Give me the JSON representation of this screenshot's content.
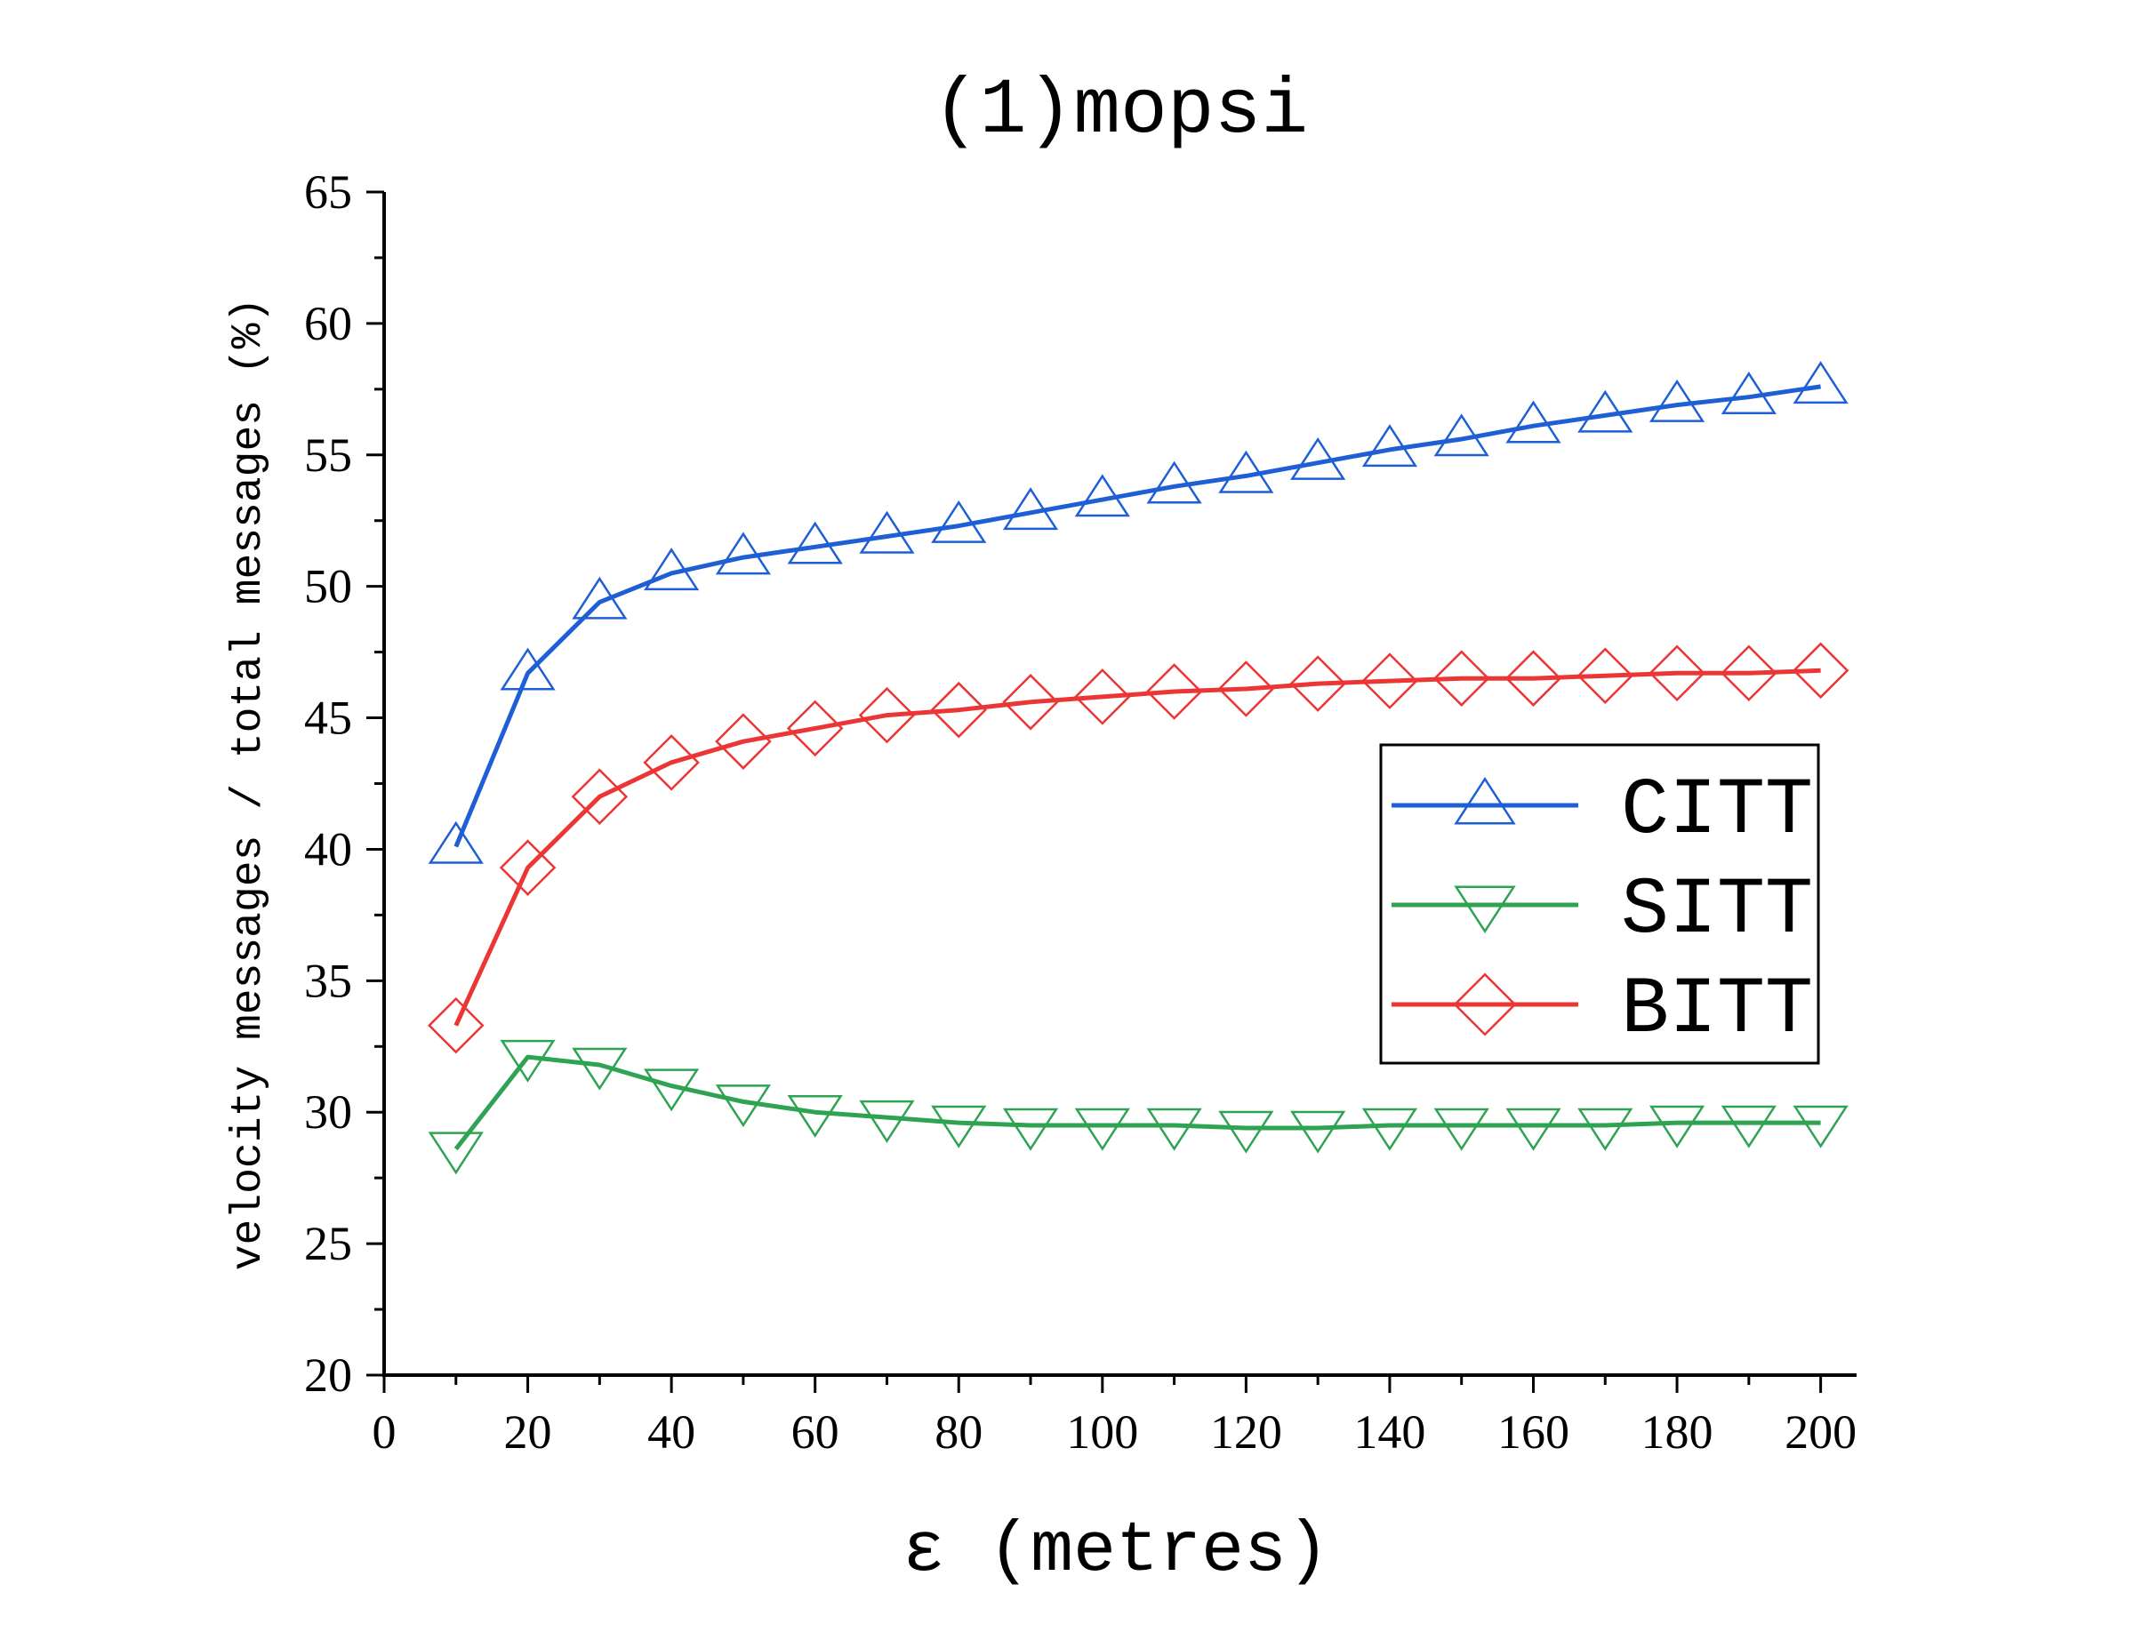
{
  "chart_data": {
    "type": "line",
    "title": "(1)mopsi",
    "xlabel": "ε  (metres)",
    "ylabel": "velocity messages / total messages (%)",
    "xlim": [
      0,
      205
    ],
    "ylim": [
      20,
      65
    ],
    "x_ticks": [
      0,
      20,
      40,
      60,
      80,
      100,
      120,
      140,
      160,
      180,
      200
    ],
    "y_ticks": [
      20,
      25,
      30,
      35,
      40,
      45,
      50,
      55,
      60,
      65
    ],
    "grid": false,
    "legend_position": "right",
    "x": [
      10,
      20,
      30,
      40,
      50,
      60,
      70,
      80,
      90,
      100,
      110,
      120,
      130,
      140,
      150,
      160,
      170,
      180,
      190,
      200
    ],
    "series": [
      {
        "name": "CITT",
        "color": "#1f5fd6",
        "marker": "triangle-up",
        "values": [
          40.1,
          46.7,
          49.4,
          50.5,
          51.1,
          51.5,
          51.9,
          52.3,
          52.8,
          53.3,
          53.8,
          54.2,
          54.7,
          55.2,
          55.6,
          56.1,
          56.5,
          56.9,
          57.2,
          57.6
        ]
      },
      {
        "name": "SITT",
        "color": "#2ea352",
        "marker": "triangle-down",
        "values": [
          28.6,
          32.1,
          31.8,
          31.0,
          30.4,
          30.0,
          29.8,
          29.6,
          29.5,
          29.5,
          29.5,
          29.4,
          29.4,
          29.5,
          29.5,
          29.5,
          29.5,
          29.6,
          29.6,
          29.6
        ]
      },
      {
        "name": "BITT",
        "color": "#ec3535",
        "marker": "diamond",
        "values": [
          33.3,
          39.3,
          42.0,
          43.3,
          44.1,
          44.6,
          45.1,
          45.3,
          45.6,
          45.8,
          46.0,
          46.1,
          46.3,
          46.4,
          46.5,
          46.5,
          46.6,
          46.7,
          46.7,
          46.8
        ]
      }
    ]
  }
}
